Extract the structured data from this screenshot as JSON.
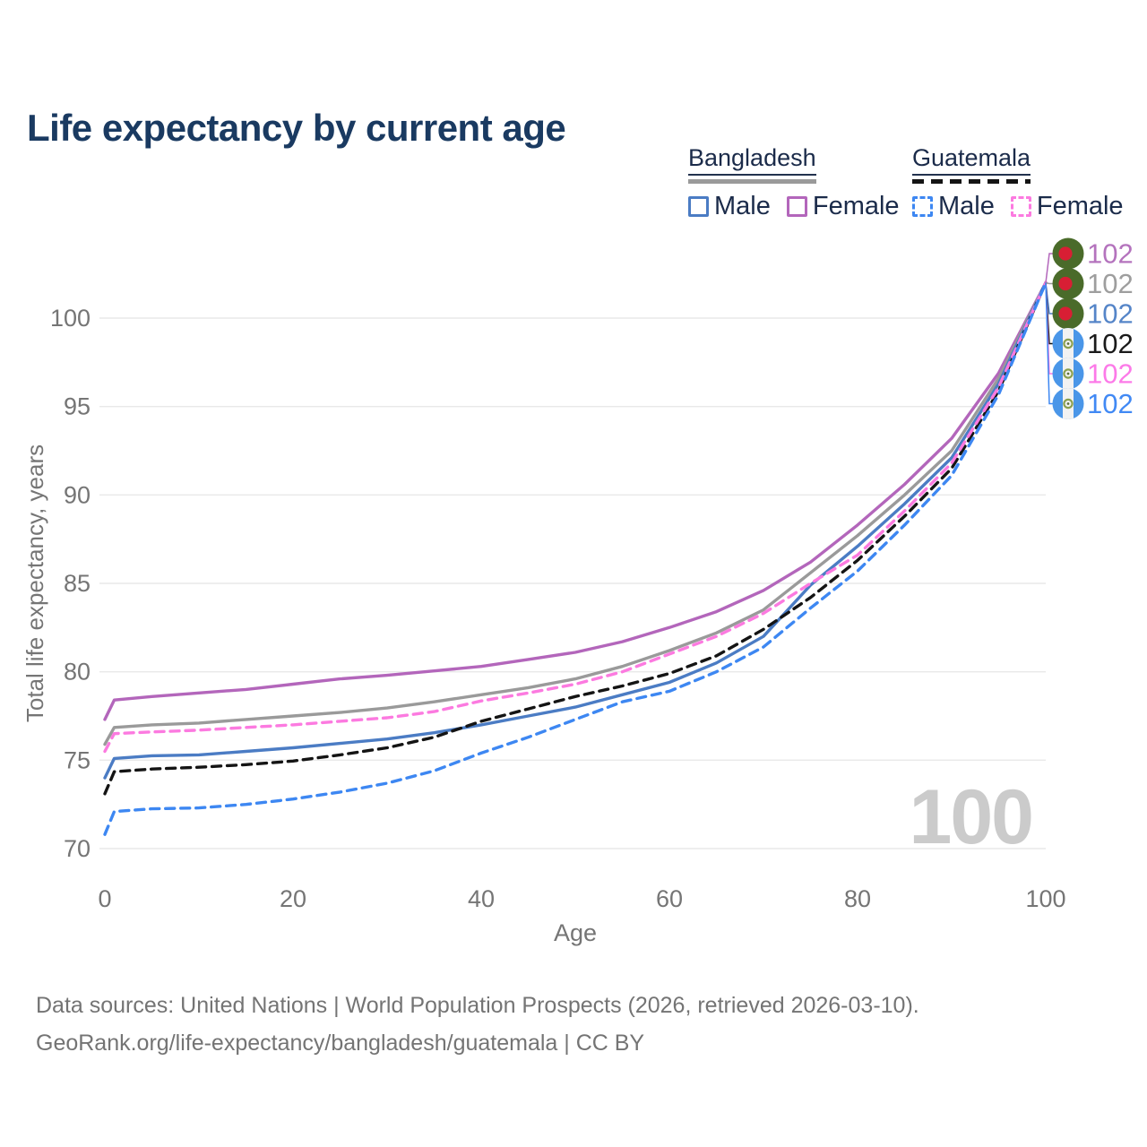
{
  "title": "Life expectancy by current age",
  "legend": {
    "groups": [
      {
        "country": "Bangladesh",
        "line_style": "solid",
        "underline_color": "#9a9a9a",
        "items": [
          {
            "label": "Male",
            "color": "#4b7cc4",
            "dash": false
          },
          {
            "label": "Female",
            "color": "#b366bb",
            "dash": false
          }
        ]
      },
      {
        "country": "Guatemala",
        "line_style": "dashed",
        "underline_color": "#141414",
        "items": [
          {
            "label": "Male",
            "color": "#3d87f2",
            "dash": true
          },
          {
            "label": "Female",
            "color": "#fc7ae0",
            "dash": true
          }
        ]
      }
    ]
  },
  "watermark": "100",
  "footer": {
    "line1": "Data sources: United Nations | World Population Prospects (2026, retrieved 2026-03-10).",
    "line2": "GeoRank.org/life-expectancy/bangladesh/guatemala | CC BY"
  },
  "chart_data": {
    "type": "line",
    "title": "Life expectancy by current age",
    "xlabel": "Age",
    "ylabel": "Total life expectancy, years",
    "xlim": [
      0,
      100
    ],
    "ylim": [
      69.5,
      103
    ],
    "xticks": [
      0,
      20,
      40,
      60,
      80,
      100
    ],
    "yticks": [
      70,
      75,
      80,
      85,
      90,
      95,
      100
    ],
    "grid": "horizontal",
    "legend_position": "top-right",
    "axis_text_color": "#757575",
    "grid_color": "#e9e9e9",
    "x": [
      0,
      1,
      5,
      10,
      15,
      20,
      25,
      30,
      35,
      40,
      45,
      50,
      55,
      60,
      65,
      70,
      75,
      80,
      85,
      90,
      95,
      100
    ],
    "series": [
      {
        "name": "Bangladesh Female",
        "country": "Bangladesh",
        "sex": "Female",
        "color": "#b366bb",
        "dash": false,
        "flag": "bangladesh",
        "end_label": "102",
        "end_label_color": "#b473bd",
        "values": [
          77.3,
          78.4,
          78.6,
          78.8,
          79.0,
          79.3,
          79.6,
          79.8,
          80.05,
          80.3,
          80.7,
          81.1,
          81.7,
          82.5,
          83.4,
          84.6,
          86.2,
          88.3,
          90.6,
          93.2,
          96.9,
          102
        ]
      },
      {
        "name": "Bangladesh Total",
        "country": "Bangladesh",
        "sex": "All",
        "color": "#9a9a9a",
        "dash": false,
        "flag": "bangladesh",
        "end_label": "102",
        "end_label_color": "#9e9e9e",
        "values": [
          75.9,
          76.85,
          77.0,
          77.1,
          77.3,
          77.5,
          77.7,
          77.95,
          78.3,
          78.7,
          79.1,
          79.6,
          80.3,
          81.2,
          82.2,
          83.5,
          85.6,
          87.7,
          90.0,
          92.5,
          96.6,
          102
        ]
      },
      {
        "name": "Bangladesh Male",
        "country": "Bangladesh",
        "sex": "Male",
        "color": "#4b7cc4",
        "dash": false,
        "flag": "bangladesh",
        "end_label": "102",
        "end_label_color": "#5585c8",
        "values": [
          74.0,
          75.1,
          75.25,
          75.3,
          75.5,
          75.7,
          75.95,
          76.2,
          76.55,
          77.0,
          77.5,
          78.0,
          78.7,
          79.4,
          80.5,
          82.0,
          84.9,
          87.1,
          89.5,
          92.1,
          96.3,
          102
        ]
      },
      {
        "name": "Guatemala Total",
        "country": "Guatemala",
        "sex": "All",
        "color": "#141414",
        "dash": true,
        "flag": "guatemala",
        "end_label": "102",
        "end_label_color": "#1a1a1a",
        "values": [
          73.1,
          74.35,
          74.5,
          74.6,
          74.75,
          74.95,
          75.3,
          75.7,
          76.3,
          77.2,
          77.9,
          78.6,
          79.2,
          79.9,
          80.9,
          82.4,
          84.2,
          86.3,
          88.8,
          91.5,
          95.9,
          102
        ]
      },
      {
        "name": "Guatemala Female",
        "country": "Guatemala",
        "sex": "Female",
        "color": "#fc7ae0",
        "dash": true,
        "flag": "guatemala",
        "end_label": "102",
        "end_label_color": "#fc7ae8",
        "values": [
          75.5,
          76.5,
          76.6,
          76.7,
          76.85,
          77.0,
          77.2,
          77.4,
          77.75,
          78.35,
          78.8,
          79.3,
          80.0,
          81.0,
          82.0,
          83.3,
          85.0,
          86.6,
          89.1,
          91.8,
          96.1,
          102
        ]
      },
      {
        "name": "Guatemala Male",
        "country": "Guatemala",
        "sex": "Male",
        "color": "#3d87f2",
        "dash": true,
        "flag": "guatemala",
        "end_label": "102",
        "end_label_color": "#4189f4",
        "values": [
          70.8,
          72.1,
          72.25,
          72.3,
          72.5,
          72.8,
          73.2,
          73.7,
          74.4,
          75.4,
          76.3,
          77.3,
          78.3,
          78.9,
          80.0,
          81.4,
          83.6,
          85.7,
          88.3,
          91.1,
          95.7,
          102
        ]
      }
    ]
  }
}
